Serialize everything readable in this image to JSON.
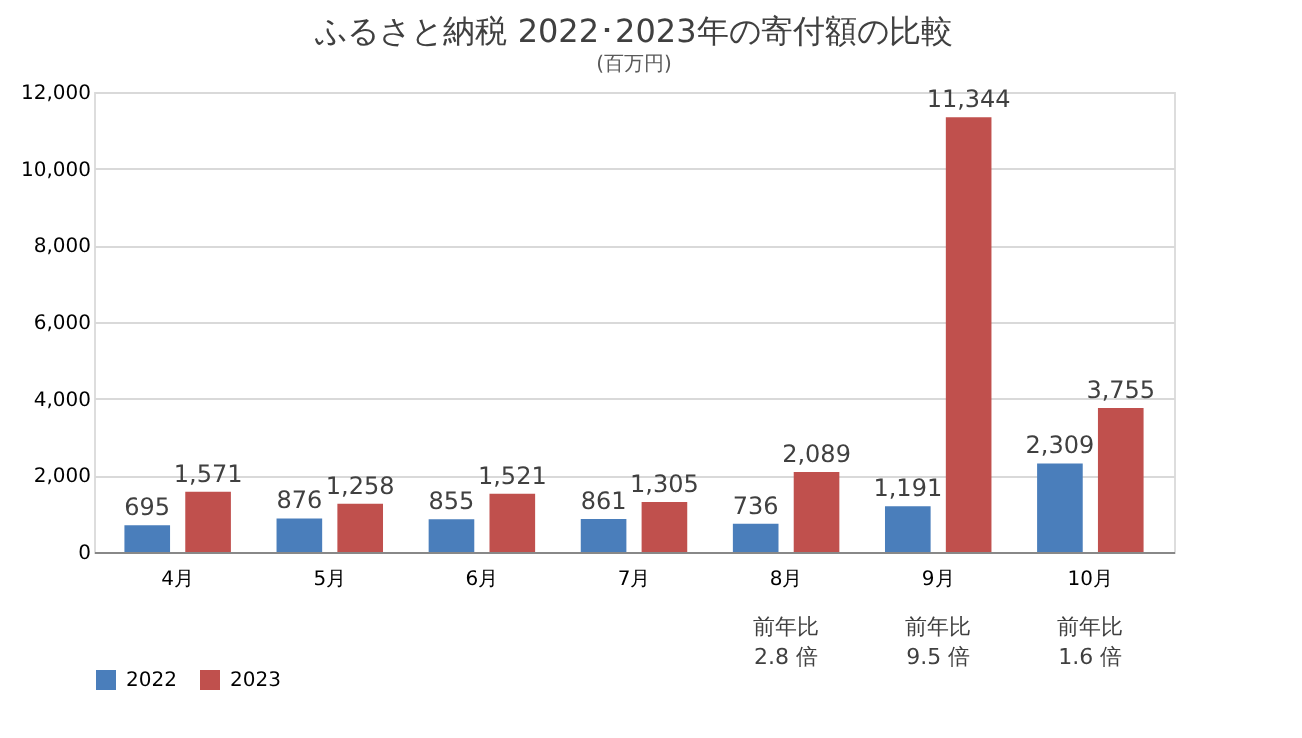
{
  "chart_data": {
    "type": "bar",
    "title": "ふるさと納税  2022･2023年の寄付額の比較",
    "ylabel": "(百万円)",
    "categories": [
      "4月",
      "5月",
      "6月",
      "7月",
      "8月",
      "9月",
      "10月"
    ],
    "series": [
      {
        "name": "2022",
        "color": "#4a7ebb",
        "values": [
          695,
          876,
          855,
          861,
          736,
          1191,
          2309
        ],
        "value_labels": [
          "695",
          "876",
          "855",
          "861",
          "736",
          "1,191",
          "2,309"
        ]
      },
      {
        "name": "2023",
        "color": "#c0504d",
        "values": [
          1571,
          1258,
          1521,
          1305,
          2089,
          11344,
          3755
        ],
        "value_labels": [
          "1,571",
          "1,258",
          "1,521",
          "1,305",
          "2,089",
          "11,344",
          "3,755"
        ]
      }
    ],
    "ylim": [
      0,
      12000
    ],
    "yticks": [
      0,
      {
        "value": 2000,
        "label": "2,000"
      },
      {
        "value": 4000,
        "label": "4,000"
      },
      {
        "value": 6000,
        "label": "6,000"
      },
      {
        "value": 8000,
        "label": "8,000"
      },
      {
        "value": 10000,
        "label": "10,000"
      },
      {
        "value": 12000,
        "label": "12,000"
      }
    ],
    "grid": "y",
    "legend": "bottom",
    "annotations": [
      "前年比\n2.8 倍",
      "前年比\n9.5 倍",
      "前年比\n1.6 倍"
    ]
  }
}
